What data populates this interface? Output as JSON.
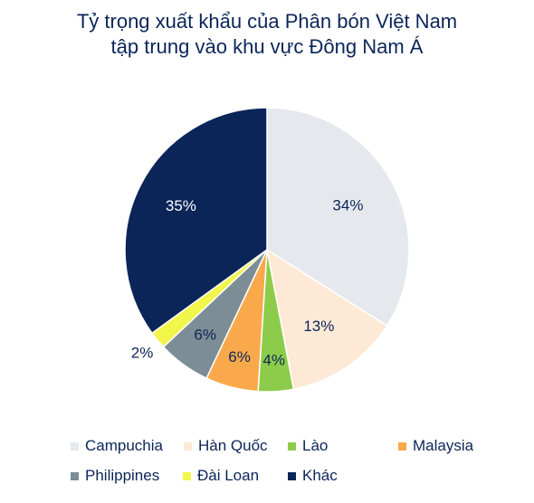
{
  "chart_data": {
    "type": "pie",
    "title_lines": [
      "Tỷ trọng xuất khẩu của Phân bón Việt Nam",
      "tập trung vào khu vực Đông Nam Á"
    ],
    "slices": [
      {
        "label": "Campuchia",
        "value": 34,
        "display": "34%",
        "color": "#e5e9ed",
        "label_color": "#0b2559"
      },
      {
        "label": "Hàn Quốc",
        "value": 13,
        "display": "13%",
        "color": "#fde9d6",
        "label_color": "#0b2559"
      },
      {
        "label": "Lào",
        "value": 4,
        "display": "4%",
        "color": "#8dcc4a",
        "label_color": "#0b2559"
      },
      {
        "label": "Malaysia",
        "value": 6,
        "display": "6%",
        "color": "#f9a94b",
        "label_color": "#0b2559"
      },
      {
        "label": "Philippines",
        "value": 6,
        "display": "6%",
        "color": "#7c8d95",
        "label_color": "#0b2559"
      },
      {
        "label": "Đài Loan",
        "value": 2,
        "display": "2%",
        "color": "#f2f54a",
        "label_color": "#0b2559"
      },
      {
        "label": "Khác",
        "value": 35,
        "display": "35%",
        "color": "#0b2559",
        "label_color": "#ffffff"
      }
    ],
    "legend_position": "bottom"
  }
}
